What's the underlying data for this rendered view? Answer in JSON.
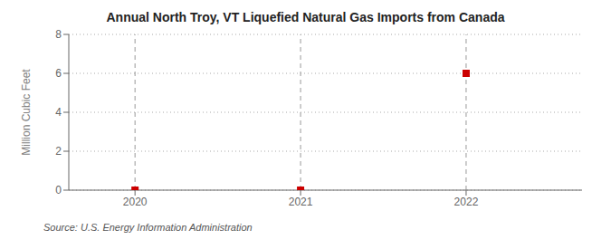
{
  "chart_data": {
    "type": "scatter",
    "title": "Annual North Troy, VT Liquefied Natural Gas Imports from Canada",
    "ylabel": "Million Cubic Feet",
    "source": "Source: U.S. Energy Information Administration",
    "x": [
      2020,
      2021,
      2022
    ],
    "values": [
      0,
      0,
      6
    ],
    "color": "#cc0000",
    "marker": "square",
    "xlim": [
      2019.6,
      2022.7
    ],
    "ylim": [
      0,
      8
    ],
    "xticks": [
      2020,
      2021,
      2022
    ],
    "yticks": [
      0,
      2,
      4,
      6,
      8
    ],
    "grid": true
  }
}
